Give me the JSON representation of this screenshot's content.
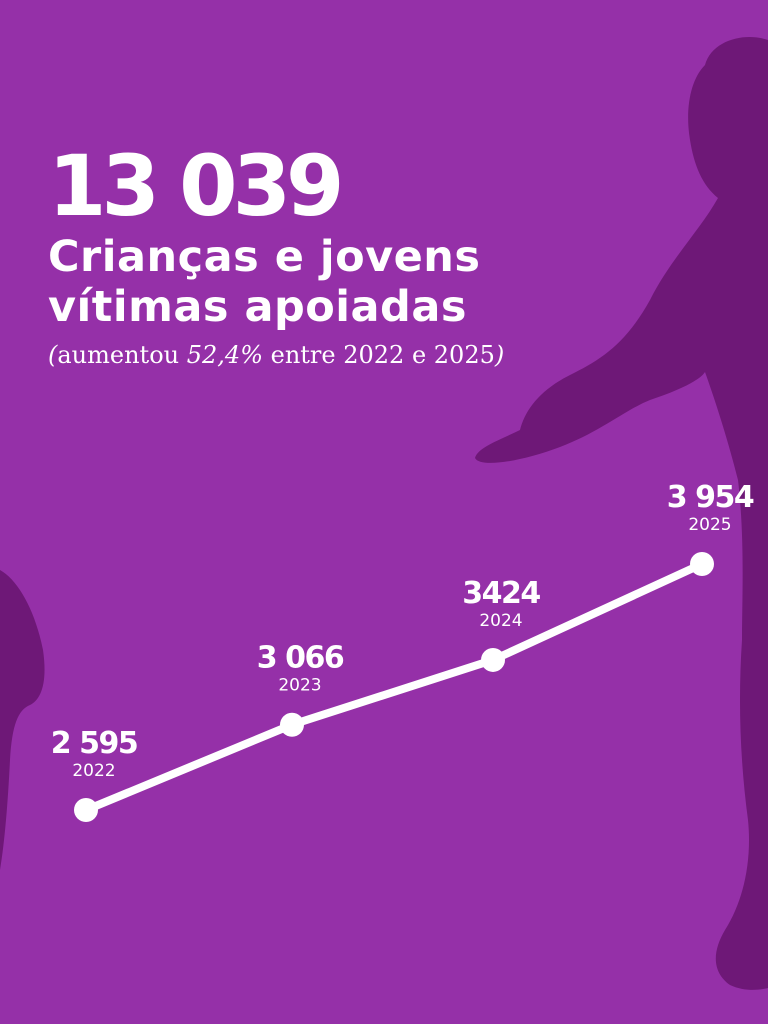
{
  "colors": {
    "background": "#9530a8",
    "silhouette": "#6e1877",
    "line": "#ffffff"
  },
  "headline": {
    "total": "13 039",
    "subtitle": "Crianças e jovens vítimas apoiadas",
    "note_open": "(",
    "note_pre": "aumentou ",
    "note_pct": "52,4%",
    "note_post": " entre 2022 e 2025",
    "note_close": ")"
  },
  "chart_data": {
    "type": "line",
    "x": [
      "2022",
      "2023",
      "2024",
      "2025"
    ],
    "values": [
      2595,
      3066,
      3424,
      3954
    ],
    "value_labels": [
      "2 595",
      "3 066",
      "3424",
      "3 954"
    ],
    "grid": false
  }
}
